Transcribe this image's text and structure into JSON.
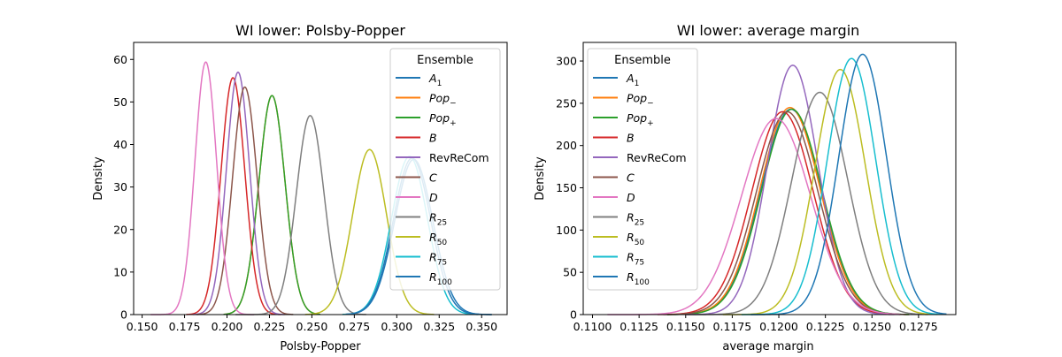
{
  "figure": {
    "background": "#ffffff"
  },
  "chart_data": [
    {
      "type": "line",
      "title": "WI lower: Polsby-Popper",
      "xlabel": "Polsby-Popper",
      "ylabel": "Density",
      "xlim": [
        0.145,
        0.365
      ],
      "ylim": [
        0,
        64
      ],
      "xticks": [
        0.15,
        0.175,
        0.2,
        0.225,
        0.25,
        0.275,
        0.3,
        0.325,
        0.35
      ],
      "xtick_labels": [
        "0.150",
        "0.175",
        "0.200",
        "0.225",
        "0.250",
        "0.275",
        "0.300",
        "0.325",
        "0.350"
      ],
      "yticks": [
        0,
        10,
        20,
        30,
        40,
        50,
        60
      ],
      "ytick_labels": [
        "0",
        "10",
        "20",
        "30",
        "40",
        "50",
        "60"
      ],
      "grid": false,
      "legend": {
        "title": "Ensemble",
        "placement": "top-right"
      },
      "series": [
        {
          "name": "A1",
          "sub": "1",
          "base": "A",
          "italic": true,
          "color": "#1f77b4",
          "mean": 0.31,
          "sd": 0.0112,
          "peak": 36.5,
          "range": [
            0.27,
            0.356
          ]
        },
        {
          "name": "Pop−",
          "sub": "−",
          "base": "Pop",
          "italic": true,
          "color": "#ff7f0e",
          "mean": 0.2265,
          "sd": 0.0077,
          "peak": 51.5,
          "range": [
            0.198,
            0.255
          ]
        },
        {
          "name": "Pop+",
          "sub": "+",
          "base": "Pop",
          "italic": true,
          "color": "#2ca02c",
          "mean": 0.2265,
          "sd": 0.0077,
          "peak": 51.5,
          "range": [
            0.198,
            0.255
          ]
        },
        {
          "name": "B",
          "sub": "",
          "base": "B",
          "italic": true,
          "color": "#d62728",
          "mean": 0.2035,
          "sd": 0.007,
          "peak": 55.7,
          "range": [
            0.176,
            0.232
          ]
        },
        {
          "name": "RevReCom",
          "sub": "",
          "base": "RevReCom",
          "italic": false,
          "color": "#9467bd",
          "mean": 0.2065,
          "sd": 0.0068,
          "peak": 57.0,
          "range": [
            0.18,
            0.234
          ]
        },
        {
          "name": "C",
          "sub": "",
          "base": "C",
          "italic": true,
          "color": "#8c564b",
          "mean": 0.2105,
          "sd": 0.0072,
          "peak": 53.5,
          "range": [
            0.182,
            0.239
          ]
        },
        {
          "name": "D",
          "sub": "",
          "base": "D",
          "italic": true,
          "color": "#e377c2",
          "mean": 0.1875,
          "sd": 0.0064,
          "peak": 59.4,
          "range": [
            0.155,
            0.216
          ]
        },
        {
          "name": "R25",
          "sub": "25",
          "base": "R",
          "italic": true,
          "color": "#7f7f7f",
          "mean": 0.249,
          "sd": 0.0082,
          "peak": 46.8,
          "range": [
            0.205,
            0.282
          ]
        },
        {
          "name": "R50",
          "sub": "50",
          "base": "R",
          "italic": true,
          "color": "#bcbd22",
          "mean": 0.284,
          "sd": 0.01,
          "peak": 38.8,
          "range": [
            0.246,
            0.322
          ]
        },
        {
          "name": "R75",
          "sub": "75",
          "base": "R",
          "italic": true,
          "color": "#17becf",
          "mean": 0.3075,
          "sd": 0.0106,
          "peak": 37.2,
          "range": [
            0.268,
            0.348
          ]
        },
        {
          "name": "R100",
          "sub": "100",
          "base": "R",
          "italic": true,
          "color": "#1f77b4",
          "mean": 0.309,
          "sd": 0.011,
          "peak": 36.8,
          "range": [
            0.27,
            0.356
          ]
        }
      ]
    },
    {
      "type": "line",
      "title": "WI lower: average margin",
      "xlabel": "average margin",
      "ylabel": "Density",
      "xlim": [
        0.1095,
        0.1295
      ],
      "ylim": [
        0,
        322
      ],
      "xticks": [
        0.11,
        0.1125,
        0.115,
        0.1175,
        0.12,
        0.1225,
        0.125,
        0.1275
      ],
      "xtick_labels": [
        "0.1100",
        "0.1125",
        "0.1150",
        "0.1175",
        "0.1200",
        "0.1225",
        "0.1250",
        "0.1275"
      ],
      "yticks": [
        0,
        50,
        100,
        150,
        200,
        250,
        300
      ],
      "ytick_labels": [
        "0",
        "50",
        "100",
        "150",
        "200",
        "250",
        "300"
      ],
      "grid": false,
      "legend": {
        "title": "Ensemble",
        "placement": "top-left"
      },
      "series": [
        {
          "name": "A1",
          "sub": "1",
          "base": "A",
          "italic": true,
          "color": "#1f77b4",
          "mean": 0.12065,
          "sd": 0.00162,
          "peak": 243,
          "range": [
            0.114,
            0.127
          ]
        },
        {
          "name": "Pop−",
          "sub": "−",
          "base": "Pop",
          "italic": true,
          "color": "#ff7f0e",
          "mean": 0.1206,
          "sd": 0.00162,
          "peak": 245,
          "range": [
            0.114,
            0.127
          ]
        },
        {
          "name": "Pop+",
          "sub": "+",
          "base": "Pop",
          "italic": true,
          "color": "#2ca02c",
          "mean": 0.1207,
          "sd": 0.00162,
          "peak": 243,
          "range": [
            0.114,
            0.127
          ]
        },
        {
          "name": "B",
          "sub": "",
          "base": "B",
          "italic": true,
          "color": "#d62728",
          "mean": 0.1202,
          "sd": 0.00165,
          "peak": 240,
          "range": [
            0.1135,
            0.1265
          ]
        },
        {
          "name": "RevReCom",
          "sub": "",
          "base": "RevReCom",
          "italic": false,
          "color": "#9467bd",
          "mean": 0.12075,
          "sd": 0.00135,
          "peak": 295,
          "range": [
            0.115,
            0.1262
          ]
        },
        {
          "name": "C",
          "sub": "",
          "base": "C",
          "italic": true,
          "color": "#8c564b",
          "mean": 0.12045,
          "sd": 0.00165,
          "peak": 240,
          "range": [
            0.1138,
            0.1268
          ]
        },
        {
          "name": "D",
          "sub": "",
          "base": "D",
          "italic": true,
          "color": "#e377c2",
          "mean": 0.11985,
          "sd": 0.00185,
          "peak": 232,
          "range": [
            0.1108,
            0.1265
          ]
        },
        {
          "name": "R25",
          "sub": "25",
          "base": "R",
          "italic": true,
          "color": "#7f7f7f",
          "mean": 0.1222,
          "sd": 0.0015,
          "peak": 263,
          "range": [
            0.115,
            0.128
          ]
        },
        {
          "name": "R50",
          "sub": "50",
          "base": "R",
          "italic": true,
          "color": "#bcbd22",
          "mean": 0.1233,
          "sd": 0.00135,
          "peak": 290,
          "range": [
            0.117,
            0.1285
          ]
        },
        {
          "name": "R75",
          "sub": "75",
          "base": "R",
          "italic": true,
          "color": "#17becf",
          "mean": 0.1239,
          "sd": 0.0013,
          "peak": 303,
          "range": [
            0.118,
            0.1288
          ]
        },
        {
          "name": "R100",
          "sub": "100",
          "base": "R",
          "italic": true,
          "color": "#1f77b4",
          "mean": 0.1245,
          "sd": 0.00128,
          "peak": 308,
          "range": [
            0.1185,
            0.129
          ]
        }
      ]
    }
  ]
}
